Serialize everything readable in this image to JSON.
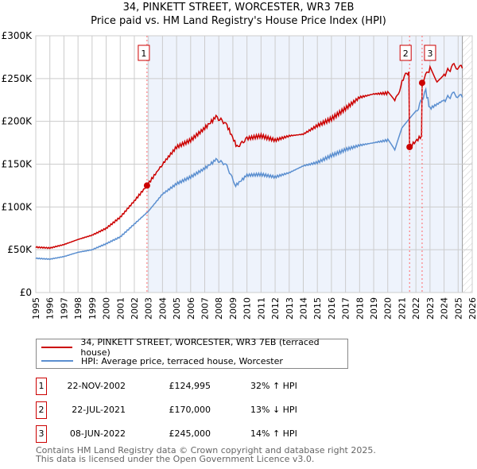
{
  "title_line1": "34, PINKETT STREET, WORCESTER, WR3 7EB",
  "title_line2": "Price paid vs. HM Land Registry's House Price Index (HPI)",
  "chart_data": {
    "type": "line",
    "ylim": [
      0,
      300000
    ],
    "xlim": [
      1995,
      2026
    ],
    "yticks": [
      0,
      50000,
      100000,
      150000,
      200000,
      250000,
      300000
    ],
    "ytick_labels": [
      "£0",
      "£50K",
      "£100K",
      "£150K",
      "£200K",
      "£250K",
      "£300K"
    ],
    "xticks": [
      "1995",
      "1996",
      "1997",
      "1998",
      "1999",
      "2000",
      "2001",
      "2002",
      "2003",
      "2004",
      "2005",
      "2006",
      "2007",
      "2008",
      "2009",
      "2010",
      "2011",
      "2012",
      "2013",
      "2014",
      "2015",
      "2016",
      "2017",
      "2018",
      "2019",
      "2020",
      "2021",
      "2022",
      "2023",
      "2024",
      "2025",
      "2026"
    ],
    "grid": true,
    "shaded_from": 2002.9,
    "hatched_from": 2025.3,
    "colors": {
      "property": "#cc0000",
      "hpi": "#5b8fd0",
      "shade": "#eef3fc"
    },
    "series": [
      {
        "name": "34, PINKETT STREET, WORCESTER, WR3 7EB (terraced house)",
        "x": [
          1995,
          1996,
          1997,
          1998,
          1999,
          2000,
          2001,
          2002,
          2002.9,
          2004,
          2005,
          2006,
          2007,
          2007.8,
          2008.5,
          2009.3,
          2010,
          2011,
          2012,
          2013,
          2014,
          2015,
          2016,
          2017,
          2018,
          2019,
          2020,
          2020.5,
          2021.1,
          2021.5,
          2021.55,
          2022.4,
          2022.44,
          2023,
          2023.5,
          2024,
          2024.7,
          2025.3
        ],
        "values": [
          53000,
          52000,
          56000,
          62000,
          67000,
          75000,
          88000,
          107000,
          125000,
          150000,
          170000,
          178000,
          192000,
          205000,
          198000,
          170000,
          180000,
          183000,
          178000,
          183000,
          185000,
          195000,
          203000,
          215000,
          228000,
          232000,
          233000,
          222000,
          250000,
          258000,
          170000,
          183000,
          245000,
          262000,
          245000,
          255000,
          265000,
          262000
        ]
      },
      {
        "name": "HPI: Average price, terraced house, Worcester",
        "x": [
          1995,
          1996,
          1997,
          1998,
          1999,
          2000,
          2001,
          2002,
          2003,
          2004,
          2005,
          2006,
          2007,
          2007.8,
          2008.5,
          2009.2,
          2010,
          2011,
          2012,
          2013,
          2014,
          2015,
          2016,
          2017,
          2018,
          2019,
          2020,
          2020.5,
          2021,
          2021.5,
          2022,
          2022.7,
          2023,
          2024,
          2024.7,
          2025.3
        ],
        "values": [
          40000,
          39000,
          42000,
          47000,
          50000,
          57000,
          65000,
          80000,
          95000,
          115000,
          127000,
          135000,
          145000,
          155000,
          150000,
          125000,
          137000,
          138000,
          135000,
          140000,
          148000,
          152000,
          160000,
          167000,
          172000,
          175000,
          178000,
          165000,
          190000,
          200000,
          210000,
          235000,
          215000,
          225000,
          232000,
          228000
        ]
      }
    ],
    "sales": [
      {
        "label": "1",
        "x": 2002.9,
        "value": 124995
      },
      {
        "label": "2",
        "x": 2021.55,
        "value": 170000
      },
      {
        "label": "3",
        "x": 2022.44,
        "value": 245000
      }
    ]
  },
  "legend": {
    "property": "34, PINKETT STREET, WORCESTER, WR3 7EB (terraced house)",
    "hpi": "HPI: Average price, terraced house, Worcester"
  },
  "transactions": [
    {
      "num": "1",
      "date": "22-NOV-2002",
      "price": "£124,995",
      "hpi": "32% ↑ HPI"
    },
    {
      "num": "2",
      "date": "22-JUL-2021",
      "price": "£170,000",
      "hpi": "13% ↓ HPI"
    },
    {
      "num": "3",
      "date": "08-JUN-2022",
      "price": "£245,000",
      "hpi": "14% ↑ HPI"
    }
  ],
  "footer_line1": "Contains HM Land Registry data © Crown copyright and database right 2025.",
  "footer_line2": "This data is licensed under the Open Government Licence v3.0."
}
